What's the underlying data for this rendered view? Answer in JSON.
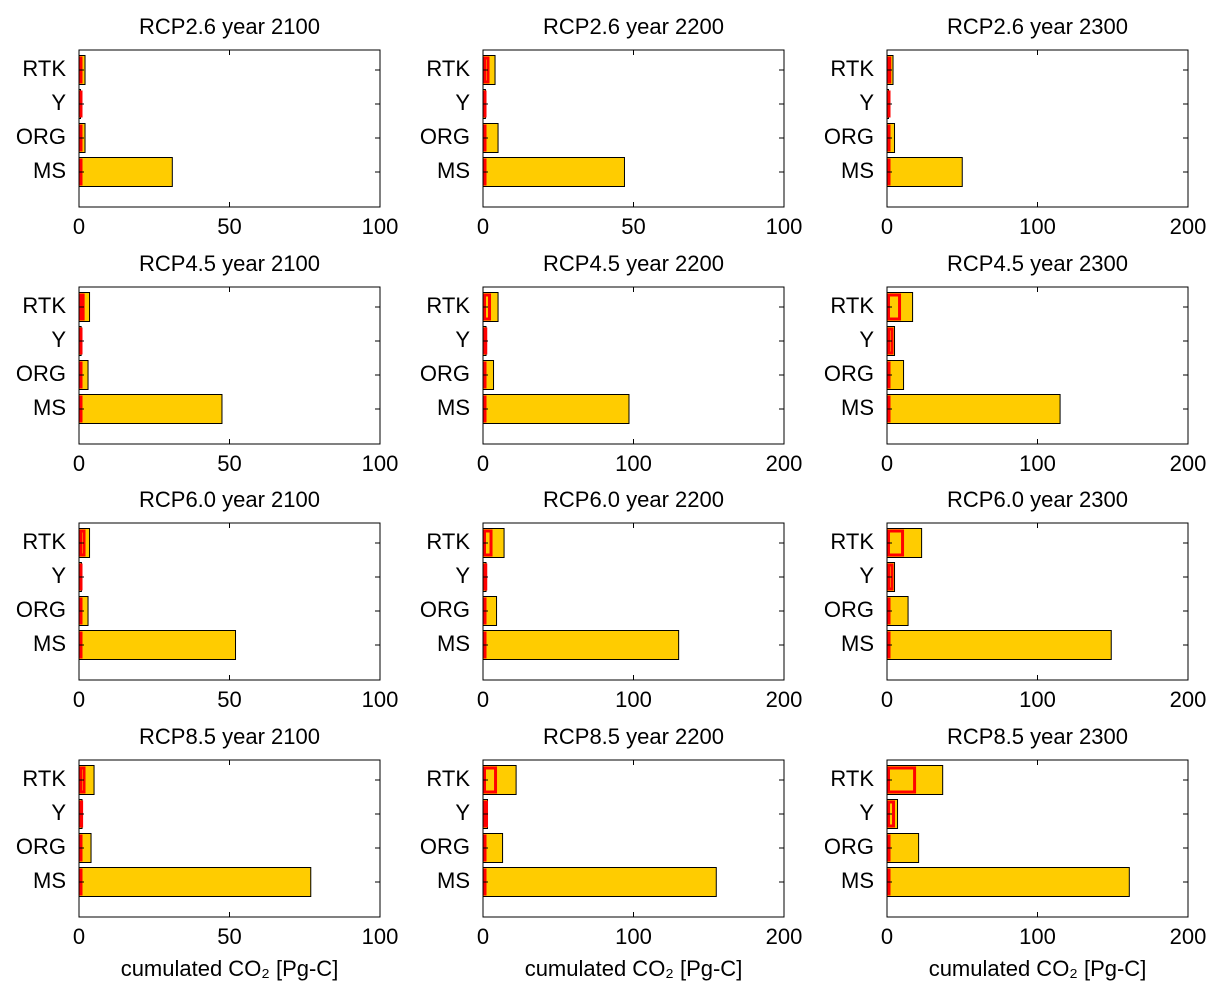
{
  "chart_data": [
    {
      "type": "barh",
      "title": "RCP2.6   year 2100",
      "categories": [
        "RTK",
        "Y",
        "ORG",
        "MS"
      ],
      "xlim": [
        0,
        100
      ],
      "xticks": [
        0,
        50,
        100
      ],
      "series": [
        {
          "color": "#ffcc00",
          "style": "filled",
          "values": [
            2,
            0.5,
            2,
            31
          ]
        },
        {
          "color": "#ff0000",
          "style": "outline",
          "values": [
            0.5,
            0.3,
            0,
            0
          ]
        }
      ]
    },
    {
      "type": "barh",
      "title": "RCP2.6   year 2200",
      "categories": [
        "RTK",
        "Y",
        "ORG",
        "MS"
      ],
      "xlim": [
        0,
        100
      ],
      "xticks": [
        0,
        50,
        100
      ],
      "series": [
        {
          "color": "#ffcc00",
          "style": "filled",
          "values": [
            4,
            0.8,
            5,
            47
          ]
        },
        {
          "color": "#ff0000",
          "style": "outline",
          "values": [
            1.5,
            0.5,
            0,
            0
          ]
        }
      ]
    },
    {
      "type": "barh",
      "title": "RCP2.6   year 2300",
      "categories": [
        "RTK",
        "Y",
        "ORG",
        "MS"
      ],
      "xlim": [
        0,
        200
      ],
      "xticks": [
        0,
        100,
        200
      ],
      "series": [
        {
          "color": "#ffcc00",
          "style": "filled",
          "values": [
            4,
            1,
            5,
            50
          ]
        },
        {
          "color": "#ff0000",
          "style": "outline",
          "values": [
            1.5,
            0.7,
            0,
            0
          ]
        }
      ]
    },
    {
      "type": "barh",
      "title": "RCP4.5   year 2100",
      "categories": [
        "RTK",
        "Y",
        "ORG",
        "MS"
      ],
      "xlim": [
        0,
        100
      ],
      "xticks": [
        0,
        50,
        100
      ],
      "series": [
        {
          "color": "#ffcc00",
          "style": "filled",
          "values": [
            3.5,
            0.7,
            3,
            47.5
          ]
        },
        {
          "color": "#ff0000",
          "style": "outline",
          "values": [
            1.2,
            0.5,
            0,
            0
          ]
        }
      ]
    },
    {
      "type": "barh",
      "title": "RCP4.5   year 2200",
      "categories": [
        "RTK",
        "Y",
        "ORG",
        "MS"
      ],
      "xlim": [
        0,
        200
      ],
      "xticks": [
        0,
        100,
        200
      ],
      "series": [
        {
          "color": "#ffcc00",
          "style": "filled",
          "values": [
            10,
            2,
            7,
            97
          ]
        },
        {
          "color": "#ff0000",
          "style": "outline",
          "values": [
            4,
            1.5,
            0,
            0
          ]
        }
      ]
    },
    {
      "type": "barh",
      "title": "RCP4.5   year 2300",
      "categories": [
        "RTK",
        "Y",
        "ORG",
        "MS"
      ],
      "xlim": [
        0,
        200
      ],
      "xticks": [
        0,
        100,
        200
      ],
      "series": [
        {
          "color": "#ffcc00",
          "style": "filled",
          "values": [
            17,
            5,
            11,
            115
          ]
        },
        {
          "color": "#ff0000",
          "style": "outline",
          "values": [
            8,
            3,
            0,
            0
          ]
        }
      ]
    },
    {
      "type": "barh",
      "title": "RCP6.0   year 2100",
      "categories": [
        "RTK",
        "Y",
        "ORG",
        "MS"
      ],
      "xlim": [
        0,
        100
      ],
      "xticks": [
        0,
        50,
        100
      ],
      "series": [
        {
          "color": "#ffcc00",
          "style": "filled",
          "values": [
            3.5,
            0.8,
            3,
            52
          ]
        },
        {
          "color": "#ff0000",
          "style": "outline",
          "values": [
            1.5,
            0.5,
            0,
            0
          ]
        }
      ]
    },
    {
      "type": "barh",
      "title": "RCP6.0   year 2200",
      "categories": [
        "RTK",
        "Y",
        "ORG",
        "MS"
      ],
      "xlim": [
        0,
        200
      ],
      "xticks": [
        0,
        100,
        200
      ],
      "series": [
        {
          "color": "#ffcc00",
          "style": "filled",
          "values": [
            14,
            2,
            9,
            130
          ]
        },
        {
          "color": "#ff0000",
          "style": "outline",
          "values": [
            5,
            1.5,
            0,
            0
          ]
        }
      ]
    },
    {
      "type": "barh",
      "title": "RCP6.0   year 2300",
      "categories": [
        "RTK",
        "Y",
        "ORG",
        "MS"
      ],
      "xlim": [
        0,
        200
      ],
      "xticks": [
        0,
        100,
        200
      ],
      "series": [
        {
          "color": "#ffcc00",
          "style": "filled",
          "values": [
            23,
            5,
            14,
            149
          ]
        },
        {
          "color": "#ff0000",
          "style": "outline",
          "values": [
            10,
            3,
            0,
            0
          ]
        }
      ]
    },
    {
      "type": "barh",
      "title": "RCP8.5   year 2100",
      "categories": [
        "RTK",
        "Y",
        "ORG",
        "MS"
      ],
      "xlim": [
        0,
        100
      ],
      "xticks": [
        0,
        50,
        100
      ],
      "xlabel": "cumulated CO₂ [Pg-C]",
      "series": [
        {
          "color": "#ffcc00",
          "style": "filled",
          "values": [
            5,
            1,
            4,
            77
          ]
        },
        {
          "color": "#ff0000",
          "style": "outline",
          "values": [
            1.5,
            0.7,
            0,
            0
          ]
        }
      ]
    },
    {
      "type": "barh",
      "title": "RCP8.5   year 2200",
      "categories": [
        "RTK",
        "Y",
        "ORG",
        "MS"
      ],
      "xlim": [
        0,
        200
      ],
      "xticks": [
        0,
        100,
        200
      ],
      "xlabel": "cumulated CO₂ [Pg-C]",
      "series": [
        {
          "color": "#ffcc00",
          "style": "filled",
          "values": [
            22,
            3,
            13,
            155
          ]
        },
        {
          "color": "#ff0000",
          "style": "outline",
          "values": [
            8,
            2,
            0,
            0
          ]
        }
      ]
    },
    {
      "type": "barh",
      "title": "RCP8.5   year 2300",
      "categories": [
        "RTK",
        "Y",
        "ORG",
        "MS"
      ],
      "xlim": [
        0,
        200
      ],
      "xticks": [
        0,
        100,
        200
      ],
      "xlabel": "cumulated CO₂ [Pg-C]",
      "series": [
        {
          "color": "#ffcc00",
          "style": "filled",
          "values": [
            37,
            7,
            21,
            161
          ]
        },
        {
          "color": "#ff0000",
          "style": "outline",
          "values": [
            18,
            4,
            0,
            0
          ]
        }
      ]
    }
  ]
}
